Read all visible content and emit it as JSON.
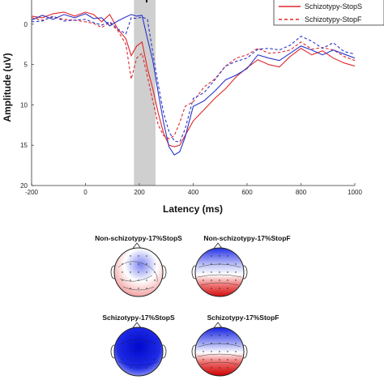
{
  "chart_data": [
    {
      "type": "line",
      "xlabel": "Latency (ms)",
      "ylabel": "Amplitude (uV)",
      "xlim": [
        -200,
        1000
      ],
      "ylim": [
        20,
        -3
      ],
      "y_axis_inverted": true,
      "x_ticks": [
        -200,
        0,
        200,
        400,
        600,
        800,
        1000
      ],
      "y_ticks": [
        0,
        5,
        10,
        15,
        20
      ],
      "highlight_window": [
        180,
        260
      ],
      "highlight_color": "#cfcfcf",
      "legend": {
        "placement": "top-right"
      },
      "series": [
        {
          "name": "Schizotypy-StopS",
          "color": "#e0262a",
          "dash": "solid",
          "x": [
            -200,
            -160,
            -120,
            -80,
            -40,
            0,
            30,
            60,
            90,
            120,
            150,
            170,
            190,
            210,
            230,
            250,
            270,
            290,
            310,
            330,
            350,
            370,
            400,
            440,
            480,
            520,
            560,
            600,
            640,
            680,
            720,
            760,
            800,
            840,
            880,
            920,
            960,
            1000
          ],
          "y": [
            -1.0,
            -0.8,
            -1.3,
            -1.5,
            -1.0,
            -1.5,
            -1.2,
            -0.3,
            -1.2,
            0.6,
            1.8,
            3.9,
            2.7,
            2.2,
            5.5,
            8.0,
            11.0,
            13.5,
            15.0,
            15.2,
            15.0,
            13.8,
            12.0,
            10.6,
            9.2,
            8.0,
            6.5,
            5.4,
            4.4,
            5.0,
            5.3,
            4.0,
            3.0,
            3.8,
            3.3,
            4.2,
            4.8,
            5.2
          ]
        },
        {
          "name": "Schizotypy-StopF",
          "color": "#e0262a",
          "dash": "dashed",
          "x": [
            -200,
            -160,
            -120,
            -80,
            -40,
            0,
            30,
            60,
            90,
            120,
            150,
            170,
            190,
            210,
            230,
            250,
            270,
            290,
            310,
            330,
            350,
            370,
            400,
            440,
            480,
            520,
            560,
            600,
            640,
            680,
            720,
            760,
            800,
            840,
            880,
            920,
            960,
            1000
          ],
          "y": [
            -0.8,
            -0.5,
            -0.9,
            -0.6,
            -0.5,
            -0.3,
            -0.1,
            0.4,
            -0.2,
            0.8,
            2.5,
            6.8,
            4.2,
            3.6,
            6.5,
            9.5,
            12.5,
            13.8,
            14.2,
            13.8,
            12.2,
            10.2,
            9.6,
            7.8,
            6.8,
            5.2,
            4.2,
            3.8,
            3.0,
            3.6,
            3.5,
            3.2,
            2.2,
            3.1,
            2.9,
            3.2,
            4.0,
            4.5
          ]
        },
        {
          "name": "",
          "color": "#2b35c9",
          "dash": "solid",
          "x": [
            -200,
            -160,
            -120,
            -80,
            -40,
            0,
            30,
            60,
            90,
            120,
            150,
            170,
            190,
            210,
            230,
            250,
            270,
            290,
            310,
            330,
            350,
            370,
            400,
            440,
            480,
            520,
            560,
            600,
            640,
            680,
            720,
            760,
            800,
            840,
            880,
            920,
            960,
            1000
          ],
          "y": [
            -0.5,
            -1.1,
            -0.6,
            -1.2,
            -0.8,
            -1.3,
            -0.7,
            -0.8,
            0.2,
            -0.4,
            -0.9,
            -1.2,
            -1.0,
            -1.1,
            1.8,
            4.5,
            8.5,
            12.2,
            15.2,
            16.2,
            15.8,
            14.0,
            10.2,
            9.5,
            8.3,
            6.9,
            6.3,
            5.5,
            3.8,
            4.2,
            4.5,
            3.6,
            2.7,
            3.2,
            3.8,
            3.2,
            3.7,
            4.2
          ]
        },
        {
          "name": "",
          "color": "#2b35c9",
          "dash": "dashed",
          "x": [
            -200,
            -160,
            -120,
            -80,
            -40,
            0,
            30,
            60,
            90,
            120,
            150,
            170,
            190,
            210,
            230,
            250,
            270,
            290,
            310,
            330,
            350,
            370,
            400,
            440,
            480,
            520,
            560,
            600,
            640,
            680,
            720,
            760,
            800,
            840,
            880,
            920,
            960,
            1000
          ],
          "y": [
            -0.3,
            -0.4,
            -1.0,
            -0.4,
            -0.5,
            -0.6,
            -0.2,
            0.1,
            -0.3,
            0.6,
            1.2,
            -0.8,
            -0.7,
            -0.9,
            -0.6,
            3.5,
            7.5,
            11.0,
            13.3,
            14.5,
            14.6,
            13.0,
            9.2,
            8.5,
            6.9,
            5.2,
            4.6,
            4.2,
            3.1,
            3.0,
            3.2,
            2.6,
            1.5,
            2.1,
            3.0,
            2.3,
            3.4,
            3.7
          ]
        }
      ]
    },
    {
      "type": "heatmap",
      "subplots": [
        {
          "title": "Non-schizotypy-17%StopS",
          "pattern": "mixed"
        },
        {
          "title": "Non-schizotypy-17%StopF",
          "pattern": "front-blue-back-red"
        },
        {
          "title": "Schizotypy-17%StopS",
          "pattern": "mostly-blue"
        },
        {
          "title": "Schizotypy-17%StopF",
          "pattern": "front-blue-back-red"
        }
      ],
      "colormap": [
        "#0a14d6",
        "#ffffff",
        "#e01010"
      ]
    }
  ]
}
